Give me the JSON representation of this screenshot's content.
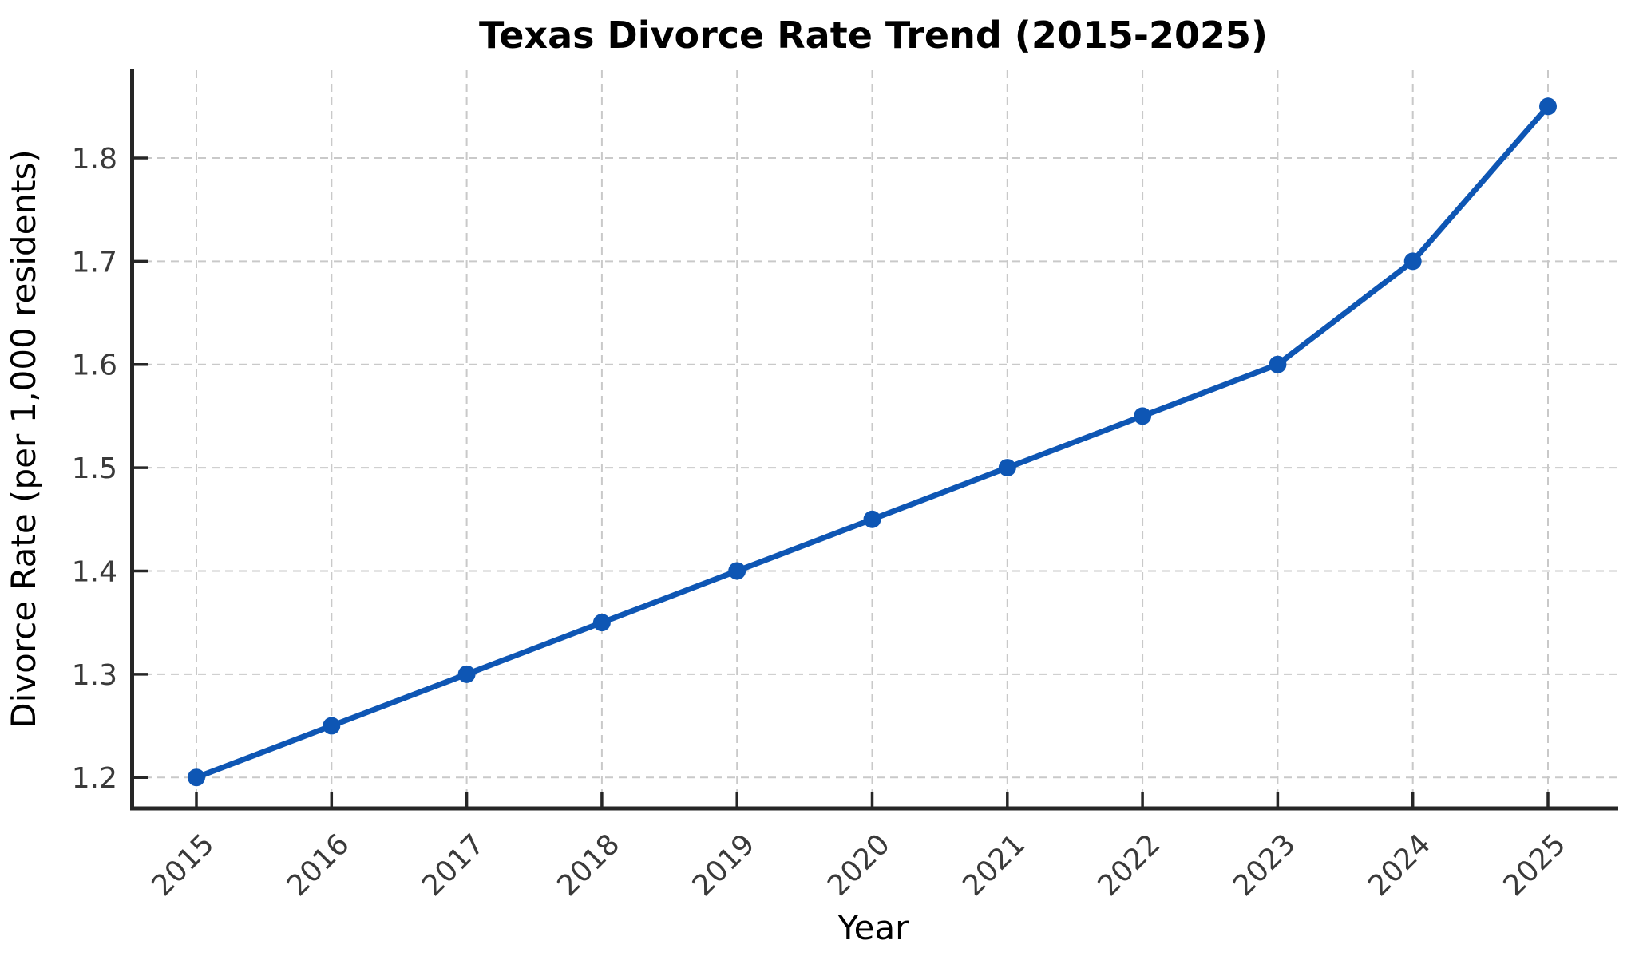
{
  "chart_data": {
    "type": "line",
    "title": "Texas Divorce Rate Trend (2015-2025)",
    "xlabel": "Year",
    "ylabel": "Divorce Rate (per 1,000 residents)",
    "categories": [
      "2015",
      "2016",
      "2017",
      "2018",
      "2019",
      "2020",
      "2021",
      "2022",
      "2023",
      "2024",
      "2025"
    ],
    "series": [
      {
        "name": "Divorce Rate",
        "values": [
          1.2,
          1.25,
          1.3,
          1.35,
          1.4,
          1.45,
          1.5,
          1.55,
          1.6,
          1.7,
          1.85
        ]
      }
    ],
    "yticks": [
      1.2,
      1.3,
      1.4,
      1.5,
      1.6,
      1.7,
      1.8
    ],
    "ytick_labels": [
      "1.2",
      "1.3",
      "1.4",
      "1.5",
      "1.6",
      "1.7",
      "1.8"
    ],
    "ylim": [
      1.17,
      1.885
    ],
    "grid": true,
    "grid_style": "dashed",
    "legend_position": "none",
    "marker": "circle",
    "x_tick_rotation_deg": 45
  },
  "style": {
    "line_color": "#0e56b4",
    "marker_color": "#0e56b4",
    "grid_color": "#c9c9c9",
    "spine_color": "#262626",
    "tick_color": "#262626",
    "title_color": "#2e2e2e",
    "label_color": "#3a3a3a",
    "background_color": "#ffffff"
  }
}
